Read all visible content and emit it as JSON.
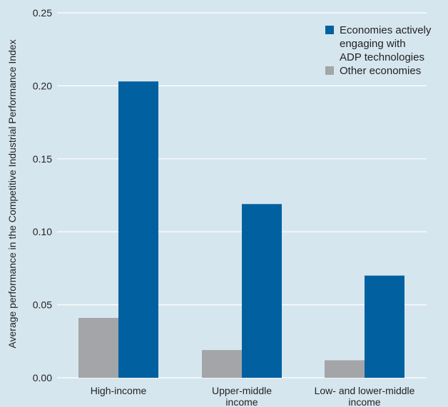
{
  "chart_data": {
    "type": "bar",
    "title": "",
    "xlabel": "",
    "ylabel": "Average performance in the Competitive Industrial Performance Index",
    "ylim": [
      0,
      0.25
    ],
    "yticks": [
      "0.00",
      "0.05",
      "0.10",
      "0.15",
      "0.20",
      "0.25"
    ],
    "categories": [
      [
        "High-income"
      ],
      [
        "Upper-middle",
        "income"
      ],
      [
        "Low- and lower-middle",
        "income"
      ]
    ],
    "series": [
      {
        "name": "Other economies",
        "color": "#a3a5a8",
        "values": [
          0.041,
          0.019,
          0.012
        ]
      },
      {
        "name": "Economies actively engaging with ADP technologies",
        "color": "#0060a0",
        "values": [
          0.203,
          0.119,
          0.07
        ]
      }
    ],
    "legend": {
      "placement": "top-right",
      "entries": [
        {
          "lines": [
            "Economies actively",
            "engaging with",
            "ADP technologies"
          ],
          "color": "#0060a0"
        },
        {
          "lines": [
            "Other economies"
          ],
          "color": "#a3a5a8"
        }
      ]
    },
    "grid": true,
    "background": "#d6e6ef",
    "grid_color": "#ffffff"
  }
}
